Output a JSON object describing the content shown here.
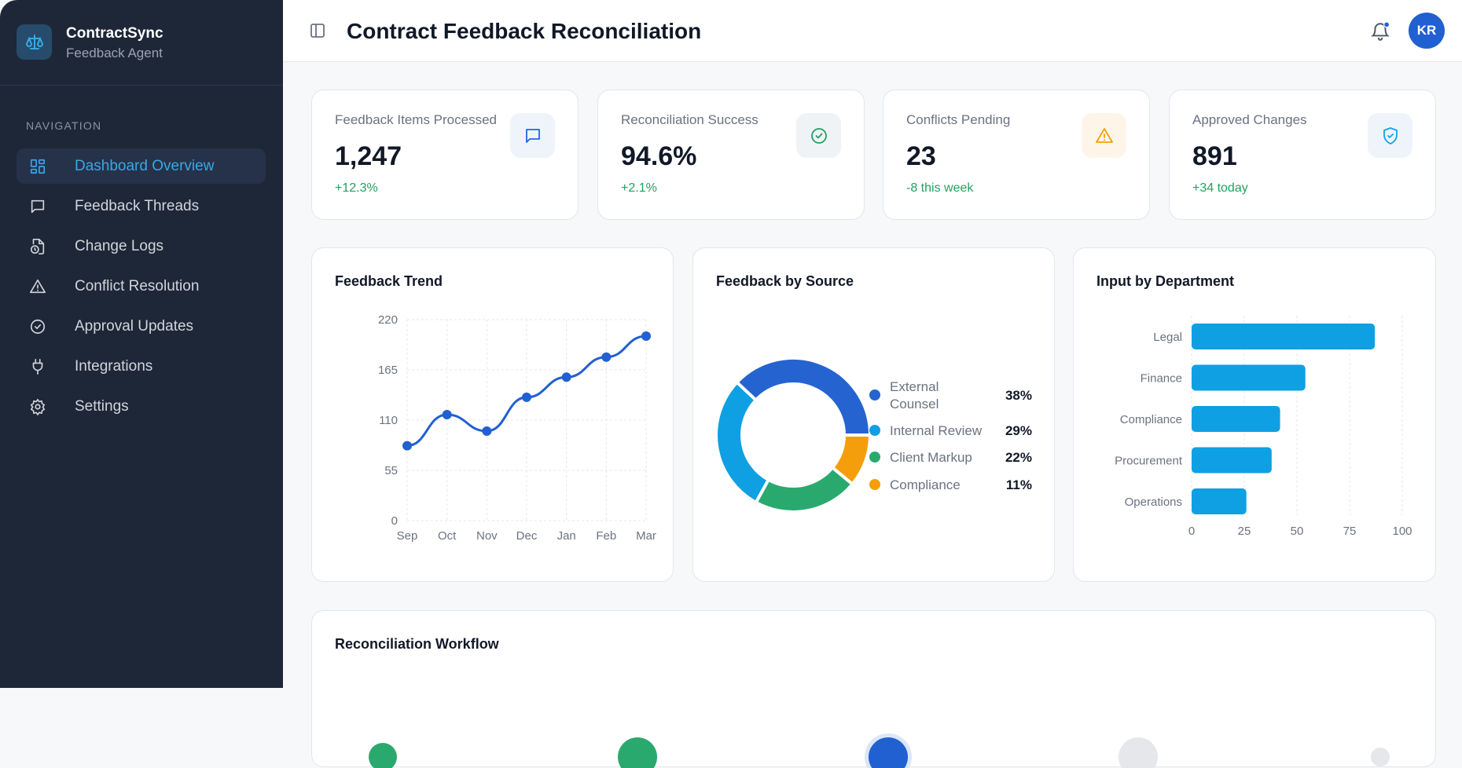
{
  "sidebar": {
    "brand": "ContractSync",
    "subtitle": "Feedback Agent",
    "nav_heading": "NAVIGATION",
    "items": [
      {
        "label": "Dashboard Overview",
        "icon": "dashboard-icon",
        "active": true
      },
      {
        "label": "Feedback Threads",
        "icon": "message-icon"
      },
      {
        "label": "Change Logs",
        "icon": "file-clock-icon"
      },
      {
        "label": "Conflict Resolution",
        "icon": "warning-icon"
      },
      {
        "label": "Approval Updates",
        "icon": "check-circle-icon"
      },
      {
        "label": "Integrations",
        "icon": "plug-icon"
      },
      {
        "label": "Settings",
        "icon": "gear-icon"
      }
    ]
  },
  "header": {
    "title": "Contract Feedback Reconciliation",
    "avatar": "KR",
    "notification_dot": true
  },
  "stats": [
    {
      "label": "Feedback Items Processed",
      "value": "1,247",
      "change": "+12.3%",
      "icon": "message-icon",
      "color": "#2563eb",
      "bg": "#eef4fa"
    },
    {
      "label": "Reconciliation Success",
      "value": "94.6%",
      "change": "+2.1%",
      "icon": "check-circle-icon",
      "color": "#22a060",
      "bg": "#f0f3f6"
    },
    {
      "label": "Conflicts Pending",
      "value": "23",
      "change": "-8 this week",
      "icon": "warning-icon",
      "color": "#f59e0b",
      "bg": "#fef5e9"
    },
    {
      "label": "Approved Changes",
      "value": "891",
      "change": "+34 today",
      "icon": "shield-check-icon",
      "color": "#0ea5e9",
      "bg": "#eef4fa"
    }
  ],
  "chart_data": [
    {
      "type": "line",
      "title": "Feedback Trend",
      "categories": [
        "Sep",
        "Oct",
        "Nov",
        "Dec",
        "Jan",
        "Feb",
        "Mar"
      ],
      "values": [
        82,
        116,
        98,
        135,
        157,
        179,
        202
      ],
      "yticks": [
        0,
        55,
        110,
        165,
        220
      ],
      "ylim": [
        0,
        220
      ],
      "grid": true,
      "color": "#2160d0"
    },
    {
      "type": "pie",
      "title": "Feedback by Source",
      "donut": true,
      "categories": [
        "External Counsel",
        "Internal Review",
        "Client Markup",
        "Compliance"
      ],
      "values": [
        38,
        29,
        22,
        11
      ],
      "labels": [
        "38%",
        "29%",
        "22%",
        "11%"
      ],
      "colors": [
        "#2563d0",
        "#0ea0e3",
        "#2aa96e",
        "#f59e0b"
      ],
      "legend": "right"
    },
    {
      "type": "bar",
      "orientation": "horizontal",
      "title": "Input by Department",
      "categories": [
        "Legal",
        "Finance",
        "Compliance",
        "Procurement",
        "Operations"
      ],
      "values": [
        87,
        54,
        42,
        38,
        26
      ],
      "xticks": [
        0,
        25,
        50,
        75,
        100
      ],
      "xlim": [
        0,
        100
      ],
      "grid": true,
      "color": "#0ea0e3"
    }
  ],
  "workflow": {
    "title": "Reconciliation Workflow",
    "steps": [
      {
        "status": "done"
      },
      {
        "status": "done"
      },
      {
        "status": "current"
      },
      {
        "status": "pending"
      },
      {
        "status": "pending"
      }
    ]
  }
}
